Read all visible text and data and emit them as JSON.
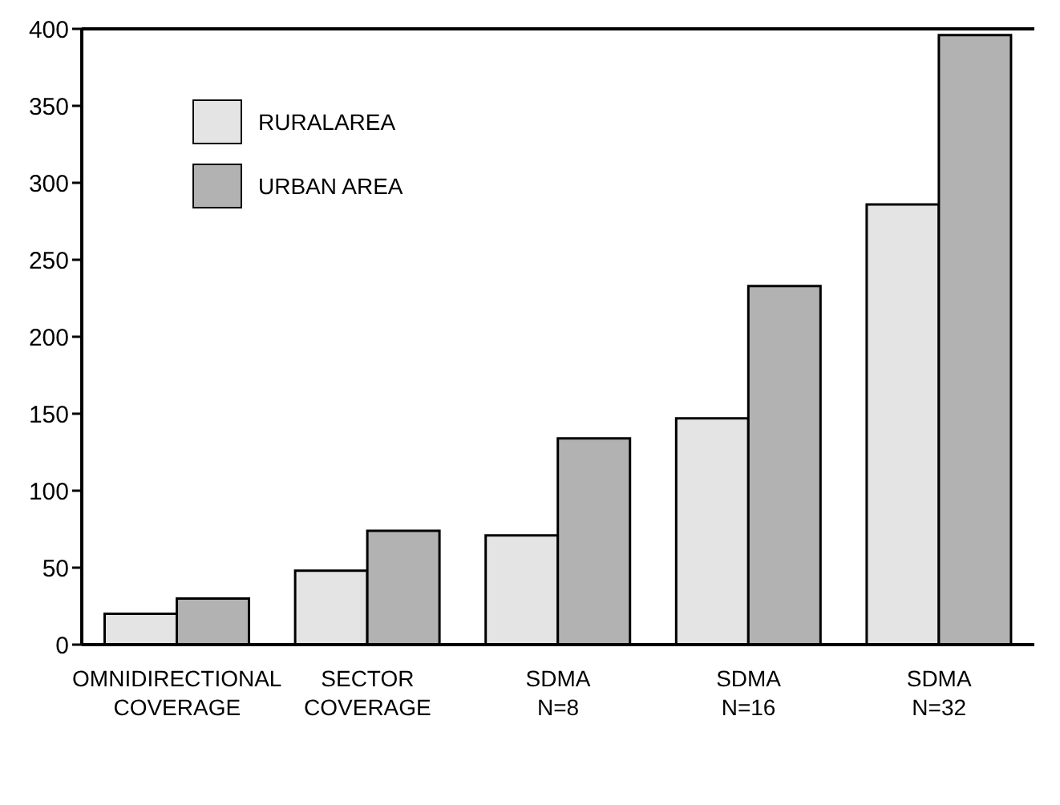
{
  "chart_data": {
    "type": "bar",
    "categories": [
      "OMNIDIRECTIONAL COVERAGE",
      "SECTOR COVERAGE",
      "SDMA N=8",
      "SDMA N=16",
      "SDMA N=32"
    ],
    "series": [
      {
        "name": "RURALAREA",
        "color": "#e4e4e4",
        "values": [
          20,
          48,
          71,
          147,
          286
        ]
      },
      {
        "name": "URBAN AREA",
        "color": "#b2b2b2",
        "values": [
          30,
          74,
          134,
          233,
          396
        ]
      }
    ],
    "ylim": [
      0,
      400
    ],
    "yticks": [
      0,
      50,
      100,
      150,
      200,
      250,
      300,
      350,
      400
    ],
    "grid": false,
    "legend": "top left"
  }
}
